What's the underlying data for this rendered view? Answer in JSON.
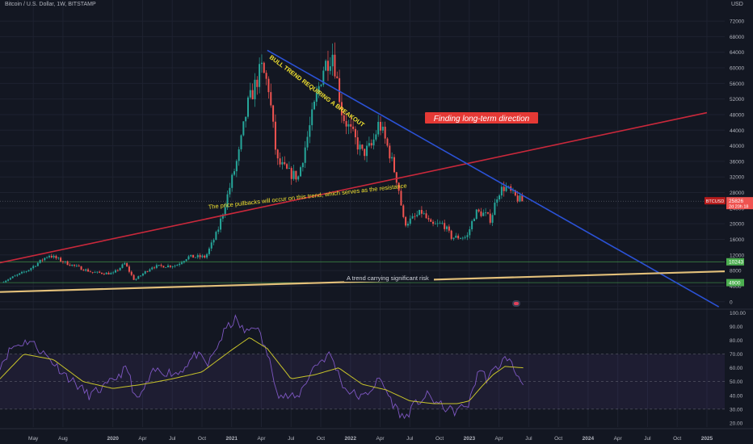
{
  "header": {
    "symbol_title": "Bitcoin / U.S. Dollar, 1W, BITSTAMP",
    "currency": "USD"
  },
  "colors": {
    "background": "#131722",
    "grid": "#1e2230",
    "axis_text": "#b2b5be",
    "candle_up": "#26a69a",
    "candle_down": "#ef5350",
    "resistance_line": "#c9283b",
    "downtrend_line": "#2b52d6",
    "support_line": "#e3c07a",
    "rsi_line": "#7e57c2",
    "rsi_ma": "#c8c42a",
    "rsi_band": "#7e57c2"
  },
  "chart_data": [
    {
      "type": "candlestick",
      "name": "price",
      "title": "Bitcoin / U.S. Dollar, 1W, BITSTAMP",
      "y_unit": "USD",
      "y_ticks": [
        0,
        4000,
        8000,
        12000,
        16000,
        20000,
        24000,
        28000,
        32000,
        36000,
        40000,
        44000,
        48000,
        52000,
        56000,
        60000,
        64000,
        68000,
        72000
      ],
      "ylim": [
        -1500,
        74500
      ],
      "x_ticks": [
        {
          "label": "May",
          "t": 2019.33
        },
        {
          "label": "Aug",
          "t": 2019.58
        },
        {
          "label": "2020",
          "t": 2020.0
        },
        {
          "label": "Apr",
          "t": 2020.25
        },
        {
          "label": "Jul",
          "t": 2020.5
        },
        {
          "label": "Oct",
          "t": 2020.75
        },
        {
          "label": "2021",
          "t": 2021.0
        },
        {
          "label": "Apr",
          "t": 2021.25
        },
        {
          "label": "Jul",
          "t": 2021.5
        },
        {
          "label": "Oct",
          "t": 2021.75
        },
        {
          "label": "2022",
          "t": 2022.0
        },
        {
          "label": "Apr",
          "t": 2022.25
        },
        {
          "label": "Jul",
          "t": 2022.5
        },
        {
          "label": "Oct",
          "t": 2022.75
        },
        {
          "label": "2023",
          "t": 2023.0
        },
        {
          "label": "Apr",
          "t": 2023.25
        },
        {
          "label": "Jul",
          "t": 2023.5
        },
        {
          "label": "Oct",
          "t": 2023.75
        },
        {
          "label": "2024",
          "t": 2024.0
        },
        {
          "label": "Apr",
          "t": 2024.25
        },
        {
          "label": "Jul",
          "t": 2024.5
        },
        {
          "label": "Oct",
          "t": 2024.75
        },
        {
          "label": "2025",
          "t": 2025.0
        }
      ],
      "xlim": [
        2019.05,
        2025.15
      ],
      "anchors": [
        {
          "t": 2019.08,
          "p": 5000
        },
        {
          "t": 2019.3,
          "p": 8000
        },
        {
          "t": 2019.48,
          "p": 12000
        },
        {
          "t": 2019.62,
          "p": 10000
        },
        {
          "t": 2019.85,
          "p": 7500
        },
        {
          "t": 2020.02,
          "p": 7200
        },
        {
          "t": 2020.12,
          "p": 9800
        },
        {
          "t": 2020.2,
          "p": 5500
        },
        {
          "t": 2020.35,
          "p": 9000
        },
        {
          "t": 2020.55,
          "p": 9300
        },
        {
          "t": 2020.65,
          "p": 11500
        },
        {
          "t": 2020.8,
          "p": 11500
        },
        {
          "t": 2020.9,
          "p": 18000
        },
        {
          "t": 2021.0,
          "p": 29000
        },
        {
          "t": 2021.08,
          "p": 38000
        },
        {
          "t": 2021.15,
          "p": 50000
        },
        {
          "t": 2021.27,
          "p": 60000
        },
        {
          "t": 2021.33,
          "p": 55000
        },
        {
          "t": 2021.4,
          "p": 36000
        },
        {
          "t": 2021.5,
          "p": 33000
        },
        {
          "t": 2021.58,
          "p": 32000
        },
        {
          "t": 2021.7,
          "p": 48000
        },
        {
          "t": 2021.79,
          "p": 60000
        },
        {
          "t": 2021.87,
          "p": 64000
        },
        {
          "t": 2021.95,
          "p": 48000
        },
        {
          "t": 2022.05,
          "p": 42000
        },
        {
          "t": 2022.12,
          "p": 38000
        },
        {
          "t": 2022.2,
          "p": 40000
        },
        {
          "t": 2022.26,
          "p": 46000
        },
        {
          "t": 2022.35,
          "p": 38000
        },
        {
          "t": 2022.42,
          "p": 30000
        },
        {
          "t": 2022.47,
          "p": 20000
        },
        {
          "t": 2022.53,
          "p": 21000
        },
        {
          "t": 2022.62,
          "p": 23000
        },
        {
          "t": 2022.7,
          "p": 19500
        },
        {
          "t": 2022.8,
          "p": 20000
        },
        {
          "t": 2022.87,
          "p": 16500
        },
        {
          "t": 2023.0,
          "p": 16600
        },
        {
          "t": 2023.07,
          "p": 23000
        },
        {
          "t": 2023.15,
          "p": 22500
        },
        {
          "t": 2023.2,
          "p": 21000
        },
        {
          "t": 2023.26,
          "p": 28000
        },
        {
          "t": 2023.32,
          "p": 29500
        },
        {
          "t": 2023.4,
          "p": 27000
        },
        {
          "t": 2023.46,
          "p": 25800
        }
      ],
      "last_price_label": {
        "ticker": "BTCUSD",
        "price": "25826",
        "countdown": "2d 20h 18"
      },
      "price_badges": [
        {
          "value": 10243,
          "text": "10243"
        },
        {
          "value": 4900,
          "text": "4900"
        }
      ],
      "trendlines": [
        {
          "name": "resistance-trendline",
          "p1": {
            "t": 2019.05,
            "p": 10000
          },
          "p2": {
            "t": 2025.0,
            "p": 48500
          }
        },
        {
          "name": "downtrend-line",
          "p1": {
            "t": 2021.3,
            "p": 64500
          },
          "p2": {
            "t": 2025.1,
            "p": -1300
          }
        },
        {
          "name": "support-trendline",
          "p1": {
            "t": 2019.05,
            "p": 2500
          },
          "p2": {
            "t": 2025.15,
            "p": 7800
          }
        }
      ],
      "horizontal_levels": [
        {
          "name": "level-10243",
          "value": 10243
        },
        {
          "name": "level-4900",
          "value": 4900
        }
      ],
      "annotations": {
        "bull_trend": "BULL TREND REQUIRING A BREAKOUT",
        "pullbacks": "The price pullbacks will occur on this trend, which serves as the resistance",
        "direction": "Finding long-term direction",
        "risk": "A trend carrying significant risk"
      }
    },
    {
      "type": "line",
      "name": "RSI",
      "y_ticks": [
        20,
        30,
        40,
        50,
        60,
        70,
        80,
        90,
        100
      ],
      "y_tick_labels": [
        "20.00",
        "30.00",
        "40.00",
        "50.00",
        "60.00",
        "70.00",
        "80.00",
        "90.00",
        "100.00"
      ],
      "ylim": [
        17,
        102
      ],
      "band": [
        30,
        70
      ],
      "midline": 50,
      "anchors": [
        {
          "t": 2019.05,
          "v": 62
        },
        {
          "t": 2019.15,
          "v": 75
        },
        {
          "t": 2019.3,
          "v": 80
        },
        {
          "t": 2019.45,
          "v": 68
        },
        {
          "t": 2019.6,
          "v": 55
        },
        {
          "t": 2019.8,
          "v": 40
        },
        {
          "t": 2019.95,
          "v": 47
        },
        {
          "t": 2020.12,
          "v": 60
        },
        {
          "t": 2020.2,
          "v": 35
        },
        {
          "t": 2020.35,
          "v": 58
        },
        {
          "t": 2020.55,
          "v": 56
        },
        {
          "t": 2020.7,
          "v": 70
        },
        {
          "t": 2020.8,
          "v": 62
        },
        {
          "t": 2020.95,
          "v": 88
        },
        {
          "t": 2021.03,
          "v": 95
        },
        {
          "t": 2021.12,
          "v": 85
        },
        {
          "t": 2021.2,
          "v": 92
        },
        {
          "t": 2021.3,
          "v": 70
        },
        {
          "t": 2021.4,
          "v": 40
        },
        {
          "t": 2021.55,
          "v": 38
        },
        {
          "t": 2021.7,
          "v": 62
        },
        {
          "t": 2021.83,
          "v": 70
        },
        {
          "t": 2021.95,
          "v": 45
        },
        {
          "t": 2022.1,
          "v": 38
        },
        {
          "t": 2022.25,
          "v": 52
        },
        {
          "t": 2022.35,
          "v": 35
        },
        {
          "t": 2022.45,
          "v": 23
        },
        {
          "t": 2022.55,
          "v": 34
        },
        {
          "t": 2022.65,
          "v": 40
        },
        {
          "t": 2022.75,
          "v": 33
        },
        {
          "t": 2022.87,
          "v": 28
        },
        {
          "t": 2023.0,
          "v": 34
        },
        {
          "t": 2023.08,
          "v": 60
        },
        {
          "t": 2023.15,
          "v": 52
        },
        {
          "t": 2023.26,
          "v": 63
        },
        {
          "t": 2023.32,
          "v": 68
        },
        {
          "t": 2023.4,
          "v": 55
        },
        {
          "t": 2023.46,
          "v": 50
        }
      ],
      "ma_anchors": [
        {
          "t": 2019.05,
          "v": 52
        },
        {
          "t": 2019.25,
          "v": 70
        },
        {
          "t": 2019.5,
          "v": 66
        },
        {
          "t": 2019.75,
          "v": 50
        },
        {
          "t": 2020.0,
          "v": 45
        },
        {
          "t": 2020.25,
          "v": 48
        },
        {
          "t": 2020.5,
          "v": 52
        },
        {
          "t": 2020.75,
          "v": 57
        },
        {
          "t": 2021.0,
          "v": 73
        },
        {
          "t": 2021.15,
          "v": 82
        },
        {
          "t": 2021.3,
          "v": 74
        },
        {
          "t": 2021.5,
          "v": 52
        },
        {
          "t": 2021.7,
          "v": 55
        },
        {
          "t": 2021.9,
          "v": 60
        },
        {
          "t": 2022.1,
          "v": 48
        },
        {
          "t": 2022.3,
          "v": 44
        },
        {
          "t": 2022.5,
          "v": 36
        },
        {
          "t": 2022.7,
          "v": 34
        },
        {
          "t": 2022.9,
          "v": 34
        },
        {
          "t": 2023.0,
          "v": 36
        },
        {
          "t": 2023.1,
          "v": 46
        },
        {
          "t": 2023.2,
          "v": 55
        },
        {
          "t": 2023.3,
          "v": 61
        },
        {
          "t": 2023.46,
          "v": 60
        }
      ]
    }
  ]
}
